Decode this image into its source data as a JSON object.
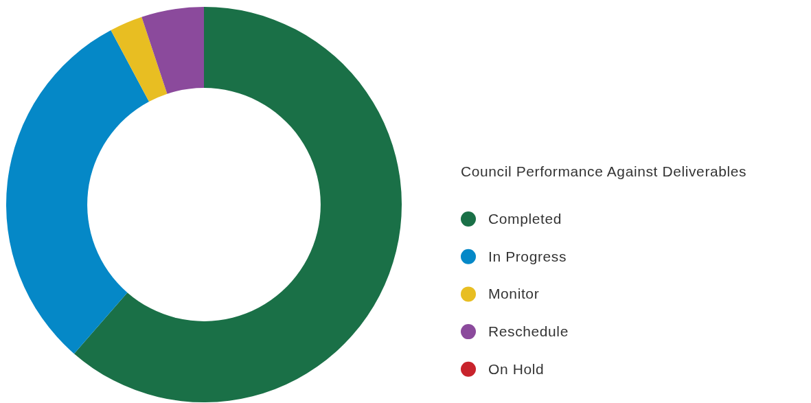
{
  "chart_data": {
    "type": "donut",
    "legend_title": "Council Performance Against Deliverables",
    "categories": [
      "Completed",
      "In Progress",
      "Monitor",
      "Reschedule",
      "On Hold"
    ],
    "values": [
      61.4,
      30.8,
      2.7,
      5.1,
      0
    ],
    "colors": [
      "#1a7047",
      "#0588c7",
      "#e8be22",
      "#8b4a9c",
      "#c8232c"
    ],
    "legend": "right"
  }
}
